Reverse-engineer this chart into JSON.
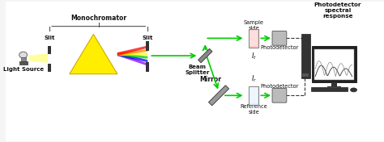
{
  "bg_color": "#f5f5f5",
  "title": "",
  "labels": {
    "light_source": "Light Source",
    "slit1": "Slit",
    "slit2": "Slit",
    "monochromator": "Monochromator",
    "mirror": "Mirror",
    "beam_splitter": "Beam\nSplitter",
    "reference_side": "Reference\nside",
    "sample_side": "Sample\nside",
    "photodetector1": "Photodetector",
    "photodetector2": "Photodetector",
    "pd_response": "Photodetector\nspectral\nresponse",
    "I_r": "$I_r$",
    "I_t": "$I_t$"
  },
  "colors": {
    "beam_green": "#00cc00",
    "beam_yellow": "#ffff00",
    "prism_yellow": "#ffee00",
    "slit_dark": "#333333",
    "mirror_gray": "#888888",
    "cuvette_clear": "#ccddff",
    "cuvette_pink": "#ffbbbb",
    "photodetector_gray": "#aaaaaa",
    "dashed_line": "#333333",
    "rainbow_red": "#ff0000",
    "rainbow_orange": "#ff8800",
    "rainbow_yellow": "#ffff00",
    "rainbow_green": "#00cc00",
    "rainbow_blue": "#0000ff",
    "rainbow_violet": "#8800ff",
    "text_color": "#000000",
    "bracket_color": "#555555"
  },
  "layout": {
    "fig_w": 4.74,
    "fig_h": 1.76,
    "dpi": 100
  }
}
